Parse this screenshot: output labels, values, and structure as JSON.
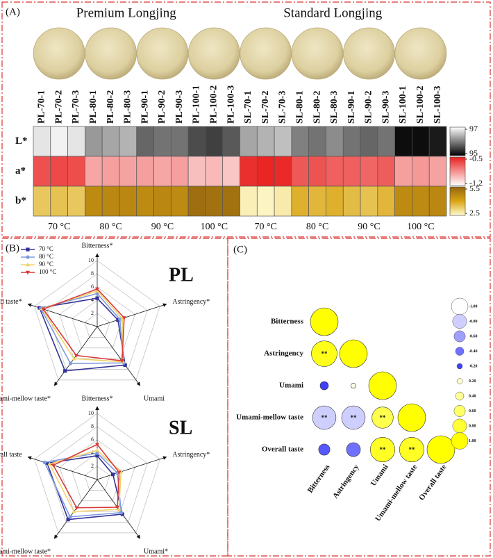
{
  "chart_data": [
    {
      "type": "heatmap",
      "label": "(A)",
      "groups": [
        "Premium Longjing",
        "Standard Longjing"
      ],
      "columns": [
        "PL-70-1",
        "PL-70-2",
        "PL-70-3",
        "PL-80-1",
        "PL-80-2",
        "PL-80-3",
        "PL-90-1",
        "PL-90-2",
        "PL-90-3",
        "PL-100-1",
        "PL-100-2",
        "PL-100-3",
        "SL-70-1",
        "SL-70-2",
        "SL-70-3",
        "SL-80-1",
        "SL-80-2",
        "SL-80-3",
        "SL-90-1",
        "SL-90-2",
        "SL-90-3",
        "SL-100-1",
        "SL-100-2",
        "SL-100-3"
      ],
      "temperatures": [
        "70 °C",
        "80 °C",
        "90 °C",
        "100 °C",
        "70 °C",
        "80 °C",
        "90 °C",
        "100 °C"
      ],
      "rows": [
        {
          "name": "L*",
          "colors": [
            "#000000",
            "#ffffff"
          ],
          "clim": [
            95,
            97
          ],
          "cticks": [
            97,
            95
          ],
          "values": [
            96.8,
            96.9,
            96.8,
            96.2,
            96.3,
            96.4,
            95.8,
            95.9,
            95.9,
            95.6,
            95.5,
            95.7,
            96.3,
            96.4,
            96.5,
            96.0,
            95.9,
            96.1,
            95.9,
            95.8,
            95.9,
            95.1,
            95.1,
            95.2
          ]
        },
        {
          "name": "a*",
          "colors": [
            "#ffffff",
            "#e8201e"
          ],
          "clim": [
            -1.2,
            -0.5
          ],
          "cticks": [
            -0.5,
            -1.2
          ],
          "values": [
            -0.65,
            -0.63,
            -0.64,
            -0.92,
            -0.9,
            -0.91,
            -0.9,
            -0.92,
            -0.9,
            -1.0,
            -0.98,
            -1.02,
            -0.55,
            -0.52,
            -0.53,
            -0.68,
            -0.66,
            -0.7,
            -0.7,
            -0.72,
            -0.69,
            -0.9,
            -0.88,
            -0.91
          ]
        },
        {
          "name": "b*",
          "colors": [
            "#fffbd0",
            "#d9a514",
            "#96650f"
          ],
          "clim": [
            2.5,
            5.5
          ],
          "cticks": [
            5.5,
            2.5
          ],
          "values": [
            3.4,
            3.5,
            3.4,
            4.6,
            4.7,
            4.7,
            4.6,
            4.7,
            4.6,
            5.3,
            5.2,
            5.2,
            2.7,
            2.6,
            2.8,
            3.8,
            3.7,
            3.8,
            3.6,
            3.5,
            3.7,
            4.6,
            4.6,
            4.7
          ]
        }
      ]
    },
    {
      "type": "radar",
      "label": "(B)",
      "title": "PL",
      "axes": [
        "Bitterness*",
        "Astringency*",
        "Umami",
        "Umami-mellow taste*",
        "Overall taste*"
      ],
      "rlim": [
        0,
        10
      ],
      "rticks": [
        2,
        4,
        6,
        8,
        10
      ],
      "series": [
        {
          "name": "70 °C",
          "color": "#333399",
          "marker": "square",
          "values": [
            4.3,
            3.3,
            7.2,
            8.3,
            9.2
          ]
        },
        {
          "name": "80 °C",
          "color": "#7d9be0",
          "marker": "circle",
          "values": [
            5.0,
            3.6,
            6.8,
            6.9,
            9.0
          ]
        },
        {
          "name": "90 °C",
          "color": "#f2d36a",
          "marker": "triangle-up",
          "values": [
            5.4,
            4.0,
            6.6,
            6.0,
            8.8
          ]
        },
        {
          "name": "100 °C",
          "color": "#d93a3a",
          "marker": "triangle-down",
          "values": [
            5.7,
            4.3,
            6.4,
            5.4,
            8.6
          ]
        }
      ]
    },
    {
      "type": "radar",
      "title": "SL",
      "axes": [
        "Bitterness*",
        "Astringency*",
        "Umami*",
        "Umami-mellow taste*",
        "Overall taste"
      ],
      "rlim": [
        0,
        10
      ],
      "rticks": [
        2,
        4,
        6,
        8,
        10
      ],
      "series": [
        {
          "name": "70 °C",
          "color": "#333399",
          "marker": "square",
          "values": [
            3.6,
            2.5,
            6.5,
            7.5,
            8.0
          ]
        },
        {
          "name": "80 °C",
          "color": "#7d9be0",
          "marker": "circle",
          "values": [
            4.0,
            3.2,
            6.2,
            7.0,
            8.4
          ]
        },
        {
          "name": "90 °C",
          "color": "#f2d36a",
          "marker": "triangle-up",
          "values": [
            4.4,
            3.8,
            5.6,
            6.0,
            7.6
          ]
        },
        {
          "name": "100 °C",
          "color": "#d93a3a",
          "marker": "triangle-down",
          "values": [
            5.3,
            3.5,
            5.2,
            5.3,
            7.0
          ]
        }
      ]
    },
    {
      "type": "correlation",
      "label": "(C)",
      "variables": [
        "Bitterness",
        "Astringency",
        "Umami",
        "Umami-mellow taste",
        "Overall taste"
      ],
      "colors": [
        "#1010ff",
        "#ffffff",
        "#ffff00"
      ],
      "clim": [
        -1,
        1
      ],
      "cticks": [
        {
          "value": -1,
          "label": "-1.00"
        },
        {
          "value": -0.8,
          "label": "-0.80"
        },
        {
          "value": -0.6,
          "label": "-0.60"
        },
        {
          "value": -0.4,
          "label": "-0.40"
        },
        {
          "value": -0.2,
          "label": "-0.20"
        },
        {
          "value": 0.2,
          "label": "0.20"
        },
        {
          "value": 0.4,
          "label": "0.40"
        },
        {
          "value": 0.6,
          "label": "0.60"
        },
        {
          "value": 0.8,
          "label": "0.80"
        },
        {
          "value": 1,
          "label": "1.00"
        }
      ],
      "cells": [
        {
          "row": 0,
          "col": 0,
          "value": 1
        },
        {
          "row": 1,
          "col": 0,
          "value": 0.9,
          "label": "**"
        },
        {
          "row": 1,
          "col": 1,
          "value": 1
        },
        {
          "row": 2,
          "col": 0,
          "value": -0.2
        },
        {
          "row": 2,
          "col": 1,
          "value": 0.1
        },
        {
          "row": 2,
          "col": 2,
          "value": 1
        },
        {
          "row": 3,
          "col": 0,
          "value": -0.8,
          "label": "**"
        },
        {
          "row": 3,
          "col": 1,
          "value": -0.8,
          "label": "**"
        },
        {
          "row": 3,
          "col": 2,
          "value": 0.7,
          "label": "**"
        },
        {
          "row": 3,
          "col": 3,
          "value": 1
        },
        {
          "row": 4,
          "col": 0,
          "value": -0.3
        },
        {
          "row": 4,
          "col": 1,
          "value": -0.4
        },
        {
          "row": 4,
          "col": 2,
          "value": 0.85,
          "label": "**"
        },
        {
          "row": 4,
          "col": 3,
          "value": 0.85,
          "label": "**"
        },
        {
          "row": 4,
          "col": 4,
          "value": 1
        }
      ]
    }
  ]
}
